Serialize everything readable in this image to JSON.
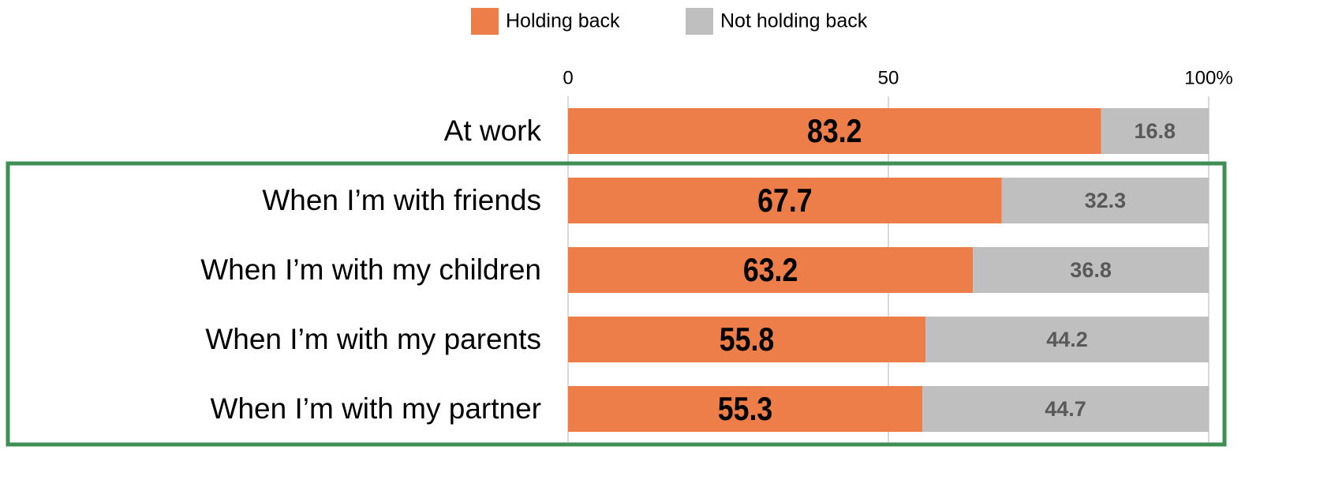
{
  "chart_data": {
    "type": "stacked_bar_horizontal",
    "categories": [
      "At work",
      "When I’m with friends",
      "When I’m with my children",
      "When I’m with my parents",
      "When I’m with my partner"
    ],
    "series": [
      {
        "name": "Holding back",
        "color": "#ed7d49",
        "values": [
          83.2,
          67.7,
          63.2,
          55.8,
          55.3
        ]
      },
      {
        "name": "Not holding back",
        "color": "#bfbfbf",
        "values": [
          16.8,
          32.3,
          36.8,
          44.2,
          44.7
        ]
      }
    ],
    "xlim": [
      0,
      100
    ],
    "xticks": [
      0,
      50,
      {
        "value": 100,
        "label": "100%"
      }
    ],
    "grid": true,
    "legend": "top"
  }
}
